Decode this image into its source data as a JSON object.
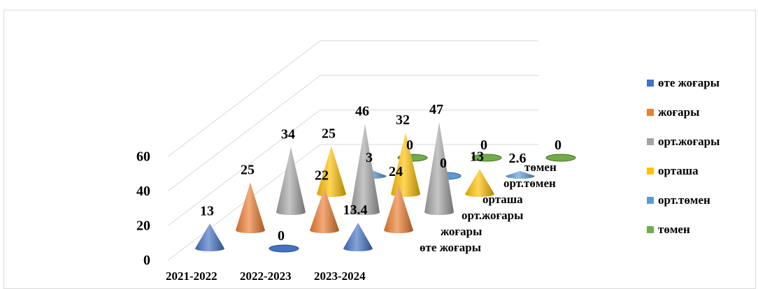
{
  "chart_data": {
    "type": "bar",
    "style": "3d-cone",
    "categories": [
      "2021-2022",
      "2022-2023",
      "2023-2024"
    ],
    "y_ticks": [
      "0",
      "20",
      "40",
      "60"
    ],
    "ylim": [
      0,
      60
    ],
    "legend_position": "right",
    "series": [
      {
        "name": "өте жоғары",
        "color": "#4472c4",
        "values": [
          13,
          0,
          13.4
        ]
      },
      {
        "name": "жоғары",
        "color": "#ed7d31",
        "values": [
          25,
          22,
          24
        ]
      },
      {
        "name": "орт.жоғары",
        "color": "#a5a5a5",
        "values": [
          34,
          46,
          47
        ]
      },
      {
        "name": "орташа",
        "color": "#ffc000",
        "values": [
          25,
          32,
          13
        ]
      },
      {
        "name": "орт.төмен",
        "color": "#5b9bd5",
        "values": [
          3,
          0,
          2.6
        ]
      },
      {
        "name": "төмен",
        "color": "#70ad47",
        "values": [
          0,
          0,
          0
        ]
      }
    ]
  }
}
